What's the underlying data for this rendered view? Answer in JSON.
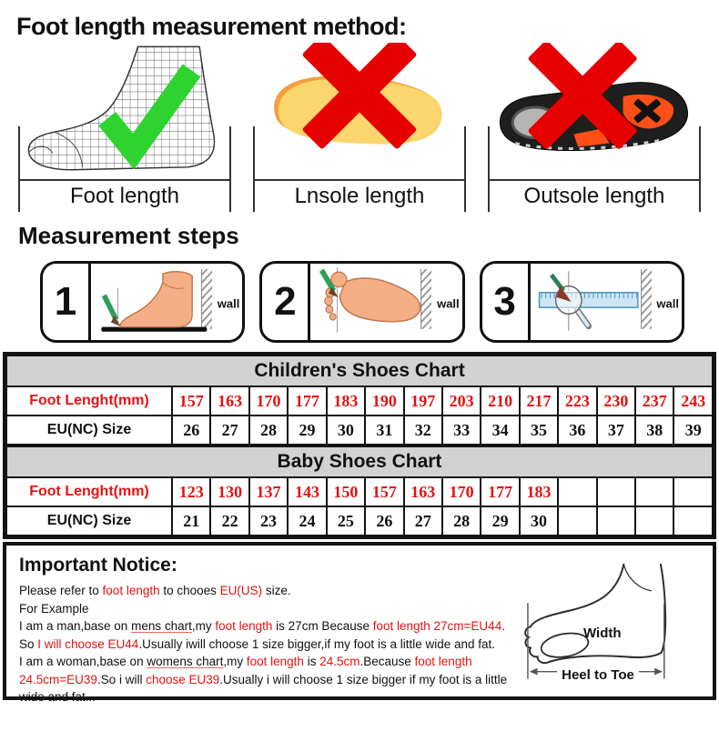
{
  "title": "Foot length measurement method:",
  "steps_heading": "Measurement steps",
  "figures": [
    {
      "label": "Foot length",
      "mark": "check-mark-icon"
    },
    {
      "label": "Lnsole length",
      "mark": "cross-mark-icon"
    },
    {
      "label": "Outsole length",
      "mark": "cross-mark-icon"
    }
  ],
  "steps": [
    {
      "number": "1",
      "wall": "wall"
    },
    {
      "number": "2",
      "wall": "wall"
    },
    {
      "number": "3",
      "wall": "wall"
    }
  ],
  "charts": [
    {
      "title": "Children's Shoes Chart",
      "row1_label": "Foot Lenght(mm)",
      "row2_label": "EU(NC) Size",
      "foot_lengths": [
        "157",
        "163",
        "170",
        "177",
        "183",
        "190",
        "197",
        "203",
        "210",
        "217",
        "223",
        "230",
        "237",
        "243"
      ],
      "sizes": [
        "26",
        "27",
        "28",
        "29",
        "30",
        "31",
        "32",
        "33",
        "34",
        "35",
        "36",
        "37",
        "38",
        "39"
      ]
    },
    {
      "title": "Baby Shoes Chart",
      "row1_label": "Foot Lenght(mm)",
      "row2_label": "EU(NC) Size",
      "foot_lengths": [
        "123",
        "130",
        "137",
        "143",
        "150",
        "157",
        "163",
        "170",
        "177",
        "183",
        "",
        "",
        "",
        ""
      ],
      "sizes": [
        "21",
        "22",
        "23",
        "24",
        "25",
        "26",
        "27",
        "28",
        "29",
        "30",
        "",
        "",
        "",
        ""
      ]
    }
  ],
  "notice": {
    "heading": "Important Notice:",
    "lines": [
      [
        {
          "t": "Please refer to "
        },
        {
          "t": "foot length",
          "c": "red"
        },
        {
          "t": " to chooes "
        },
        {
          "t": "EU(US)",
          "c": "red"
        },
        {
          "t": " size."
        }
      ],
      [
        {
          "t": "For Example"
        }
      ],
      [
        {
          "t": "I am a man,base on "
        },
        {
          "t": "mens chart",
          "u": true
        },
        {
          "t": ",my "
        },
        {
          "t": "foot length",
          "c": "red"
        },
        {
          "t": " is 27cm Because "
        },
        {
          "t": "foot length 27cm=EU44",
          "c": "red"
        },
        {
          "t": "."
        }
      ],
      [
        {
          "t": "So "
        },
        {
          "t": "I will choose EU44",
          "c": "red"
        },
        {
          "t": ".Usually iwill choose 1 size bigger,if my foot is a little wide and fat."
        }
      ],
      [
        {
          "t": "I am a woman,base on "
        },
        {
          "t": "womens chart",
          "u": true
        },
        {
          "t": ",my "
        },
        {
          "t": "foot length",
          "c": "red"
        },
        {
          "t": " is "
        },
        {
          "t": "24.5cm",
          "c": "red"
        },
        {
          "t": ".Because "
        },
        {
          "t": "foot length",
          "c": "red"
        }
      ],
      [
        {
          "t": "24.5cm=EU39",
          "c": "red"
        },
        {
          "t": ".So i will "
        },
        {
          "t": "choose EU39",
          "c": "red"
        },
        {
          "t": ".Usually i will choose 1 size bigger if my foot is a little"
        }
      ],
      [
        {
          "t": "wide and fat..."
        }
      ]
    ],
    "diagram": {
      "width": "Width",
      "heel_to_toe": "Heel to Toe"
    }
  },
  "colors": {
    "red_text": "#e31212",
    "cross": "#e60000",
    "check": "#2fd32f",
    "header_bg": "#d2d2d2"
  }
}
